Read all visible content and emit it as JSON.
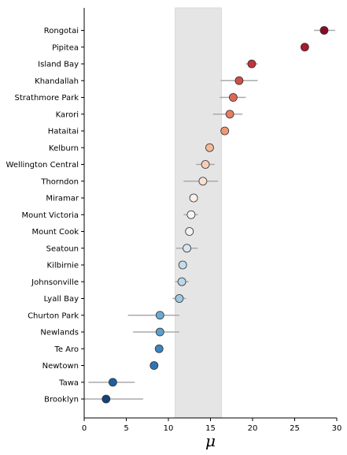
{
  "chart_data": {
    "type": "scatter",
    "xlabel": "μ",
    "xlim": [
      0,
      30
    ],
    "xticks": [
      0,
      5,
      10,
      15,
      20,
      25,
      30
    ],
    "shaded_band": [
      10.8,
      16.3
    ],
    "colors": {
      "shade": "#e5e5e5",
      "error_bar": "#aaaaaa",
      "marker_edge": "#333333"
    },
    "categories": [
      "Rongotai",
      "Pipitea",
      "Island Bay",
      "Khandallah",
      "Strathmore Park",
      "Karori",
      "Hataitai",
      "Kelburn",
      "Wellington Central",
      "Thorndon",
      "Miramar",
      "Mount Victoria",
      "Mount Cook",
      "Seatoun",
      "Kilbirnie",
      "Johnsonville",
      "Lyall Bay",
      "Churton Park",
      "Newlands",
      "Te Aro",
      "Newtown",
      "Tawa",
      "Brooklyn"
    ],
    "values": [
      28.5,
      26.2,
      19.9,
      18.4,
      17.7,
      17.3,
      16.7,
      14.9,
      14.4,
      14.1,
      13.0,
      12.7,
      12.5,
      12.2,
      11.7,
      11.6,
      11.3,
      9.0,
      9.0,
      8.9,
      8.3,
      3.4,
      2.6
    ],
    "error_low": [
      27.3,
      25.7,
      19.2,
      16.2,
      16.1,
      15.3,
      null,
      14.5,
      13.3,
      11.8,
      null,
      11.8,
      null,
      10.9,
      null,
      10.8,
      10.5,
      5.2,
      5.8,
      null,
      null,
      0.5,
      0.0
    ],
    "error_high": [
      29.8,
      26.7,
      20.6,
      20.6,
      19.2,
      18.8,
      null,
      15.3,
      15.5,
      15.9,
      null,
      13.5,
      null,
      13.5,
      null,
      12.4,
      12.1,
      11.3,
      11.3,
      null,
      null,
      6.0,
      7.0
    ],
    "marker_colors": [
      "#8b0a25",
      "#a61b2d",
      "#c0343a",
      "#d04e48",
      "#db6a55",
      "#e57d62",
      "#ee9975",
      "#f6b898",
      "#f8ccb7",
      "#fae0d2",
      "#fbf0ea",
      "#f7f7f7",
      "#f0f4f6",
      "#d7e6f0",
      "#c6dcec",
      "#bcd7ea",
      "#9ec9e0",
      "#6aabd2",
      "#5b9fcc",
      "#3b85c0",
      "#2f74b4",
      "#1e5fa2",
      "#14427a"
    ]
  }
}
